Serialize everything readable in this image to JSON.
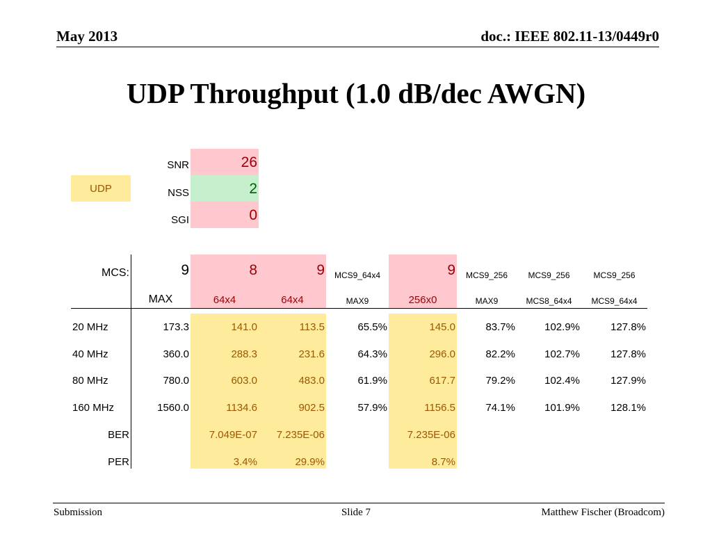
{
  "header": {
    "date": "May 2013",
    "doc": "doc.: IEEE 802.11-13/0449r0"
  },
  "title": "UDP Throughput (1.0 dB/dec AWGN)",
  "params": {
    "tag": "UDP",
    "snr_label": "SNR",
    "snr_value": "26",
    "nss_label": "NSS",
    "nss_value": "2",
    "sgi_label": "SGI",
    "sgi_value": "0"
  },
  "table": {
    "mcs_label": "MCS:",
    "mcs_row": [
      "9",
      "8",
      "9",
      "MCS9_64x4",
      "9",
      "MCS9_256",
      "MCS9_256",
      "MCS9_256"
    ],
    "sub_row": [
      "MAX",
      "64x4",
      "64x4",
      "MAX9",
      "256x0",
      "MAX9",
      "MCS8_64x4",
      "MCS9_64x4"
    ],
    "rows": [
      {
        "label": "20 MHz",
        "values": [
          "173.3",
          "141.0",
          "113.5",
          "65.5%",
          "145.0",
          "83.7%",
          "102.9%",
          "127.8%"
        ]
      },
      {
        "label": "40 MHz",
        "values": [
          "360.0",
          "288.3",
          "231.6",
          "64.3%",
          "296.0",
          "82.2%",
          "102.7%",
          "127.8%"
        ]
      },
      {
        "label": "80 MHz",
        "values": [
          "780.0",
          "603.0",
          "483.0",
          "61.9%",
          "617.7",
          "79.2%",
          "102.4%",
          "127.9%"
        ]
      },
      {
        "label": "160 MHz",
        "values": [
          "1560.0",
          "1134.6",
          "902.5",
          "57.9%",
          "1156.5",
          "74.1%",
          "101.9%",
          "128.1%"
        ]
      },
      {
        "label": "BER",
        "values": [
          "",
          "7.049E-07",
          "7.235E-06",
          "",
          "7.235E-06",
          "",
          "",
          ""
        ]
      },
      {
        "label": "PER",
        "values": [
          "",
          "3.4%",
          "29.9%",
          "",
          "8.7%",
          "",
          "",
          ""
        ]
      }
    ]
  },
  "footer": {
    "left": "Submission",
    "center": "Slide 7",
    "right": "Matthew Fischer (Broadcom)"
  },
  "colors": {
    "pink_bg": "#ffc7ce",
    "green_bg": "#c6efce",
    "yellow_bg": "#ffeb9c",
    "red_text": "#9c0006",
    "green_text": "#006100",
    "brown_text": "#9c5700"
  }
}
